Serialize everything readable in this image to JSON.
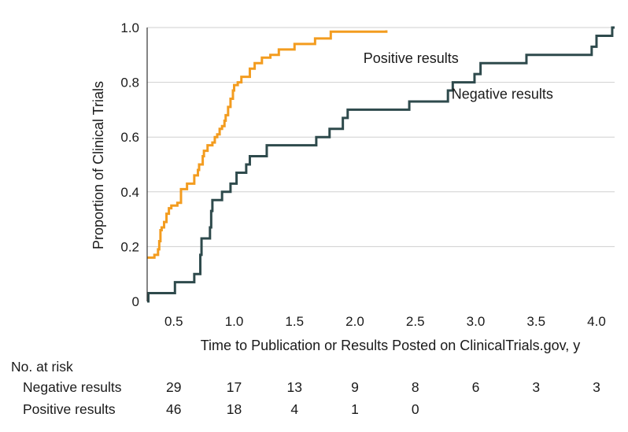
{
  "chart_data": {
    "type": "line",
    "subtype": "kaplan-meier step curve",
    "xlabel": "Time to Publication or Results Posted on ClinicalTrials.gov, y",
    "ylabel": "Proportion of Clinical Trials",
    "xlim": [
      0.28,
      4.15
    ],
    "ylim": [
      0,
      1.0
    ],
    "x_ticks": [
      0.5,
      1.0,
      1.5,
      2.0,
      2.5,
      3.0,
      3.5,
      4.0
    ],
    "x_tick_labels": [
      "0.5",
      "1.0",
      "1.5",
      "2.0",
      "2.5",
      "3.0",
      "3.5",
      "4.0"
    ],
    "y_ticks": [
      0,
      0.2,
      0.4,
      0.6,
      0.8,
      1.0
    ],
    "y_tick_labels": [
      "0",
      "0.2",
      "0.4",
      "0.6",
      "0.8",
      "1.0"
    ],
    "grid": true,
    "series": [
      {
        "name": "Positive results",
        "color": "#F39C1F",
        "steps": [
          [
            0.28,
            0.16
          ],
          [
            0.34,
            0.17
          ],
          [
            0.37,
            0.19
          ],
          [
            0.38,
            0.22
          ],
          [
            0.39,
            0.26
          ],
          [
            0.4,
            0.27
          ],
          [
            0.42,
            0.29
          ],
          [
            0.44,
            0.32
          ],
          [
            0.46,
            0.34
          ],
          [
            0.48,
            0.35
          ],
          [
            0.53,
            0.36
          ],
          [
            0.56,
            0.41
          ],
          [
            0.61,
            0.43
          ],
          [
            0.67,
            0.46
          ],
          [
            0.7,
            0.48
          ],
          [
            0.71,
            0.5
          ],
          [
            0.74,
            0.53
          ],
          [
            0.75,
            0.55
          ],
          [
            0.78,
            0.57
          ],
          [
            0.82,
            0.58
          ],
          [
            0.84,
            0.6
          ],
          [
            0.86,
            0.61
          ],
          [
            0.88,
            0.63
          ],
          [
            0.9,
            0.64
          ],
          [
            0.92,
            0.66
          ],
          [
            0.93,
            0.68
          ],
          [
            0.95,
            0.71
          ],
          [
            0.97,
            0.74
          ],
          [
            0.99,
            0.77
          ],
          [
            1.0,
            0.79
          ],
          [
            1.03,
            0.8
          ],
          [
            1.06,
            0.82
          ],
          [
            1.13,
            0.85
          ],
          [
            1.17,
            0.87
          ],
          [
            1.23,
            0.89
          ],
          [
            1.3,
            0.9
          ],
          [
            1.37,
            0.92
          ],
          [
            1.5,
            0.94
          ],
          [
            1.67,
            0.96
          ],
          [
            1.8,
            0.985
          ],
          [
            2.26,
            0.99
          ]
        ],
        "end_x": 2.26
      },
      {
        "name": "Negative results",
        "color": "#2E4A4C",
        "steps": [
          [
            0.28,
            0.0
          ],
          [
            0.29,
            0.03
          ],
          [
            0.51,
            0.07
          ],
          [
            0.67,
            0.1
          ],
          [
            0.72,
            0.17
          ],
          [
            0.73,
            0.23
          ],
          [
            0.8,
            0.27
          ],
          [
            0.81,
            0.33
          ],
          [
            0.82,
            0.37
          ],
          [
            0.9,
            0.4
          ],
          [
            0.97,
            0.43
          ],
          [
            1.02,
            0.47
          ],
          [
            1.1,
            0.5
          ],
          [
            1.13,
            0.53
          ],
          [
            1.27,
            0.57
          ],
          [
            1.68,
            0.6
          ],
          [
            1.79,
            0.63
          ],
          [
            1.9,
            0.67
          ],
          [
            1.94,
            0.7
          ],
          [
            2.45,
            0.73
          ],
          [
            2.77,
            0.77
          ],
          [
            2.81,
            0.8
          ],
          [
            2.99,
            0.83
          ],
          [
            3.04,
            0.87
          ],
          [
            3.42,
            0.9
          ],
          [
            3.96,
            0.93
          ],
          [
            4.0,
            0.97
          ],
          [
            4.13,
            1.0
          ]
        ],
        "end_x": 4.15
      }
    ],
    "annotations": [
      {
        "text": "Positive results",
        "x": 2.07,
        "y": 0.87
      },
      {
        "text": "Negative results",
        "x": 2.8,
        "y": 0.74
      }
    ],
    "risk_table": {
      "title": "No. at risk",
      "columns_x": [
        0.5,
        1.0,
        1.5,
        2.0,
        2.5,
        3.0,
        3.5,
        4.0
      ],
      "rows": [
        {
          "label": "Negative results",
          "values": [
            "29",
            "17",
            "13",
            "9",
            "8",
            "6",
            "3",
            "3"
          ]
        },
        {
          "label": "Positive results",
          "values": [
            "46",
            "18",
            "4",
            "1",
            "0"
          ]
        }
      ]
    }
  }
}
